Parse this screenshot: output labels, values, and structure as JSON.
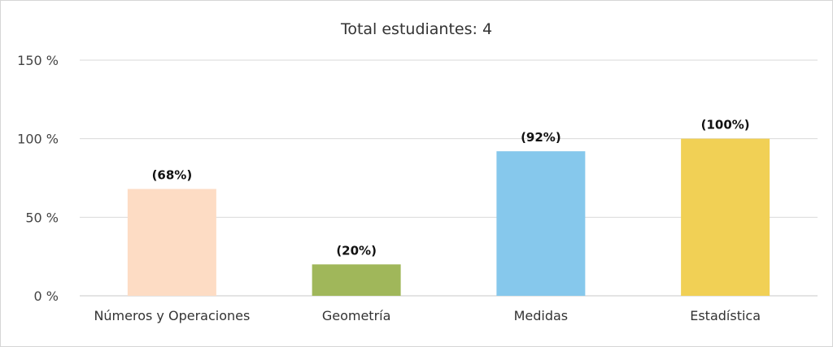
{
  "chart_data": {
    "type": "bar",
    "title": "Total estudiantes: 4",
    "categories": [
      "Números y Operaciones",
      "Geometría",
      "Medidas",
      "Estadística"
    ],
    "values": [
      68,
      20,
      92,
      100
    ],
    "value_labels": [
      "(68%)",
      "(20%)",
      "(92%)",
      "(100%)"
    ],
    "colors": [
      "#FDDCC4",
      "#A0B75A",
      "#86C8EC",
      "#F1D055"
    ],
    "ylim": [
      0,
      150
    ],
    "yticks": [
      0,
      50,
      100,
      150
    ],
    "ytick_labels": [
      "0 %",
      "50 %",
      "100 %",
      "150 %"
    ],
    "grid": true,
    "legend": "none"
  }
}
